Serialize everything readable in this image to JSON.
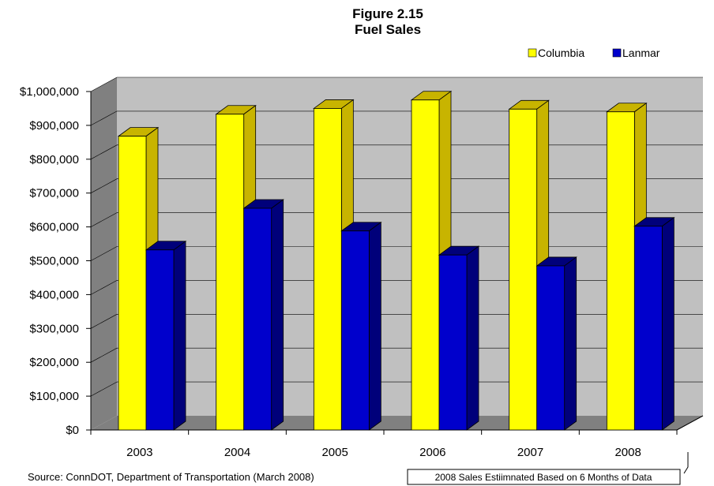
{
  "chart_data": {
    "type": "bar",
    "title": "Figure 2.15",
    "subtitle": "Fuel Sales",
    "categories": [
      "2003",
      "2004",
      "2005",
      "2006",
      "2007",
      "2008"
    ],
    "series": [
      {
        "name": "Columbia",
        "values": [
          868000,
          933000,
          950000,
          975000,
          948000,
          940000
        ],
        "color": "#FFFF00",
        "top_color": "#C8B400"
      },
      {
        "name": "Lanmar",
        "values": [
          532000,
          655000,
          588000,
          517000,
          485000,
          602000
        ],
        "color": "#0000CC",
        "top_color": "#00007A"
      }
    ],
    "ylim": [
      0,
      1000000
    ],
    "yticks": [
      "$0",
      "$100,000",
      "$200,000",
      "$300,000",
      "$400,000",
      "$500,000",
      "$600,000",
      "$700,000",
      "$800,000",
      "$900,000",
      "$1,000,000"
    ],
    "grid": true,
    "legend_position": "top-right",
    "wall_color": "#C0C0C0",
    "floor_color": "#808080",
    "source": "Source: ConnDOT, Department of Transportation (March 2008)",
    "annotation": "2008 Sales Estiimnated Based on 6 Months of Data"
  }
}
